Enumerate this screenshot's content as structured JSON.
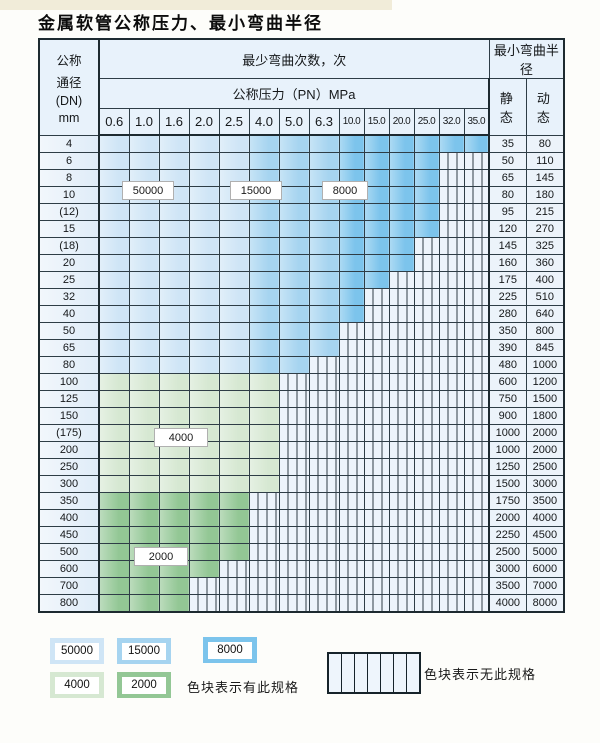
{
  "title": "金属软管公称压力、最小弯曲半径",
  "table": {
    "header": {
      "dn_lines": [
        "公称",
        "通径",
        "(DN)",
        "mm"
      ],
      "bend_cycles_label": "最少弯曲次数，次",
      "pressure_label": "公称压力（PN）MPa",
      "radius_label": "最小弯曲半径",
      "static_label": "静 态",
      "dynamic_label": "动 态",
      "columns": [
        "0.6",
        "1.0",
        "1.6",
        "2.0",
        "2.5",
        "4.0",
        "5.0",
        "6.3",
        "10.0",
        "15.0",
        "20.0",
        "25.0",
        "32.0",
        "35.0"
      ]
    },
    "rows": [
      {
        "dn": "4",
        "static": "35",
        "dynamic": "80",
        "zone": "blue",
        "last": 13
      },
      {
        "dn": "6",
        "static": "50",
        "dynamic": "110",
        "zone": "blue",
        "last": 11
      },
      {
        "dn": "8",
        "static": "65",
        "dynamic": "145",
        "zone": "blue",
        "last": 11
      },
      {
        "dn": "10",
        "static": "80",
        "dynamic": "180",
        "zone": "blue",
        "last": 11
      },
      {
        "dn": "(12)",
        "static": "95",
        "dynamic": "215",
        "zone": "blue",
        "last": 11
      },
      {
        "dn": "15",
        "static": "120",
        "dynamic": "270",
        "zone": "blue",
        "last": 11
      },
      {
        "dn": "(18)",
        "static": "145",
        "dynamic": "325",
        "zone": "blue",
        "last": 10
      },
      {
        "dn": "20",
        "static": "160",
        "dynamic": "360",
        "zone": "blue",
        "last": 10
      },
      {
        "dn": "25",
        "static": "175",
        "dynamic": "400",
        "zone": "blue",
        "last": 9
      },
      {
        "dn": "32",
        "static": "225",
        "dynamic": "510",
        "zone": "blue",
        "last": 8
      },
      {
        "dn": "40",
        "static": "280",
        "dynamic": "640",
        "zone": "blue",
        "last": 8
      },
      {
        "dn": "50",
        "static": "350",
        "dynamic": "800",
        "zone": "blue",
        "last": 7
      },
      {
        "dn": "65",
        "static": "390",
        "dynamic": "845",
        "zone": "blue",
        "last": 7
      },
      {
        "dn": "80",
        "static": "480",
        "dynamic": "1000",
        "zone": "blue",
        "last": 6
      },
      {
        "dn": "100",
        "static": "600",
        "dynamic": "1200",
        "zone": "g4000",
        "last": 5
      },
      {
        "dn": "125",
        "static": "750",
        "dynamic": "1500",
        "zone": "g4000",
        "last": 5
      },
      {
        "dn": "150",
        "static": "900",
        "dynamic": "1800",
        "zone": "g4000",
        "last": 5
      },
      {
        "dn": "(175)",
        "static": "1000",
        "dynamic": "2000",
        "zone": "g4000",
        "last": 5
      },
      {
        "dn": "200",
        "static": "1000",
        "dynamic": "2000",
        "zone": "g4000",
        "last": 5
      },
      {
        "dn": "250",
        "static": "1250",
        "dynamic": "2500",
        "zone": "g4000",
        "last": 5
      },
      {
        "dn": "300",
        "static": "1500",
        "dynamic": "3000",
        "zone": "g4000",
        "last": 5
      },
      {
        "dn": "350",
        "static": "1750",
        "dynamic": "3500",
        "zone": "g2000",
        "last": 4
      },
      {
        "dn": "400",
        "static": "2000",
        "dynamic": "4000",
        "zone": "g2000",
        "last": 4
      },
      {
        "dn": "450",
        "static": "2250",
        "dynamic": "4500",
        "zone": "g2000",
        "last": 4
      },
      {
        "dn": "500",
        "static": "2500",
        "dynamic": "5000",
        "zone": "g2000",
        "last": 4
      },
      {
        "dn": "600",
        "static": "3000",
        "dynamic": "6000",
        "zone": "g2000",
        "last": 3
      },
      {
        "dn": "700",
        "static": "3500",
        "dynamic": "7000",
        "zone": "g2000",
        "last": 2
      },
      {
        "dn": "800",
        "static": "4000",
        "dynamic": "8000",
        "zone": "g2000",
        "last": 2
      }
    ],
    "blue_bands": [
      {
        "from": 0,
        "to": 4,
        "color_key": "c50000"
      },
      {
        "from": 5,
        "to": 7,
        "color_key": "c15000"
      },
      {
        "from": 8,
        "to": 13,
        "color_key": "c8000"
      }
    ]
  },
  "colors": {
    "c50000": "#cfe5f6",
    "c15000": "#a6d4f0",
    "c8000": "#7cc4ec",
    "c4000": "#d6e8d2",
    "c2000": "#93c795",
    "border": "#2e3d46",
    "nospec_bg": "#edf4fb"
  },
  "zone_labels": [
    {
      "text": "50000"
    },
    {
      "text": "15000"
    },
    {
      "text": "8000"
    },
    {
      "text": "4000"
    },
    {
      "text": "2000"
    }
  ],
  "legend": {
    "swatches": [
      {
        "label": "50000",
        "color_key": "c50000"
      },
      {
        "label": "15000",
        "color_key": "c15000"
      },
      {
        "label": "8000",
        "color_key": "c8000"
      },
      {
        "label": "4000",
        "color_key": "c4000"
      },
      {
        "label": "2000",
        "color_key": "c2000"
      }
    ],
    "has_spec_text": "色块表示有此规格",
    "no_spec_text": "色块表示无此规格"
  }
}
